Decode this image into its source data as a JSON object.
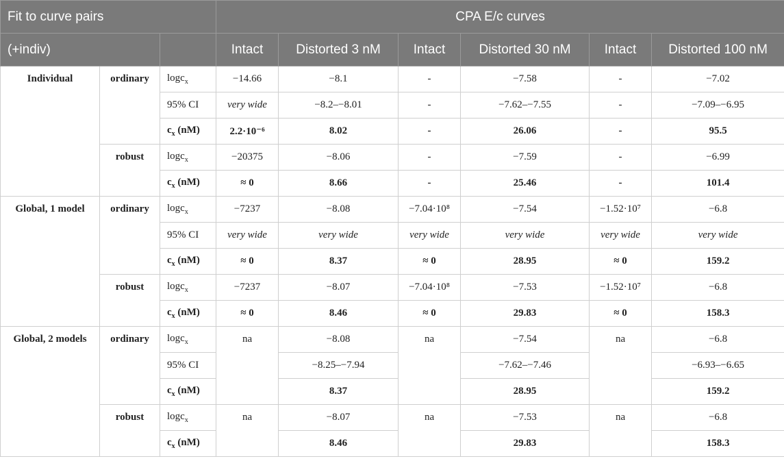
{
  "header": {
    "title_left": "Fit to curve pairs",
    "subtitle_left": "(+indiv)",
    "title_right": "CPA E/c curves",
    "columns": [
      "Intact",
      "Distorted 3 nM",
      "Intact",
      "Distorted 30 nM",
      "Intact",
      "Distorted 100 nM"
    ]
  },
  "labels": {
    "logc": "logc",
    "logc_sub": "x",
    "ci": "95% CI",
    "cx_pre": "c",
    "cx_sub": "x",
    "cx_post": " (nM)"
  },
  "groups": [
    {
      "name": "Individual",
      "methods": [
        {
          "name": "ordinary",
          "rows": [
            {
              "metric": "logc",
              "cells": [
                "−14.66",
                "−8.1",
                "-",
                "−7.58",
                "-",
                "−7.02"
              ]
            },
            {
              "metric": "ci",
              "cells": [
                "very wide",
                "−8.2–−8.01",
                "-",
                "−7.62–−7.55",
                "-",
                "−7.09–−6.95"
              ]
            },
            {
              "metric": "cx",
              "cells": [
                "2.2·10⁻⁶",
                "8.02",
                "-",
                "26.06",
                "-",
                "95.5"
              ]
            }
          ]
        },
        {
          "name": "robust",
          "rows": [
            {
              "metric": "logc",
              "cells": [
                "−20375",
                "−8.06",
                "-",
                "−7.59",
                "-",
                "−6.99"
              ]
            },
            {
              "metric": "cx",
              "cells": [
                "≈ 0",
                "8.66",
                "-",
                "25.46",
                "-",
                "101.4"
              ]
            }
          ]
        }
      ]
    },
    {
      "name": "Global, 1 model",
      "methods": [
        {
          "name": "ordinary",
          "rows": [
            {
              "metric": "logc",
              "cells": [
                "−7237",
                "−8.08",
                "−7.04·10⁸",
                "−7.54",
                "−1.52·10⁷",
                "−6.8"
              ]
            },
            {
              "metric": "ci",
              "cells": [
                "very wide",
                "very wide",
                "very wide",
                "very wide",
                "very wide",
                "very wide"
              ]
            },
            {
              "metric": "cx",
              "cells": [
                "≈ 0",
                "8.37",
                "≈ 0",
                "28.95",
                "≈ 0",
                "159.2"
              ]
            }
          ]
        },
        {
          "name": "robust",
          "rows": [
            {
              "metric": "logc",
              "cells": [
                "−7237",
                "−8.07",
                "−7.04·10⁸",
                "−7.53",
                "−1.52·10⁷",
                "−6.8"
              ]
            },
            {
              "metric": "cx",
              "cells": [
                "≈ 0",
                "8.46",
                "≈ 0",
                "29.83",
                "≈ 0",
                "158.3"
              ]
            }
          ]
        }
      ]
    },
    {
      "name": "Global, 2 models",
      "methods": [
        {
          "name": "ordinary",
          "intact_value": "na",
          "rows": [
            {
              "metric": "logc",
              "distorted": [
                "−8.08",
                "−7.54",
                "−6.8"
              ]
            },
            {
              "metric": "ci",
              "distorted": [
                "−8.25–−7.94",
                "−7.62–−7.46",
                "−6.93–−6.65"
              ]
            },
            {
              "metric": "cx",
              "distorted": [
                "8.37",
                "28.95",
                "159.2"
              ]
            }
          ]
        },
        {
          "name": "robust",
          "intact_value": "na",
          "rows": [
            {
              "metric": "logc",
              "distorted": [
                "−8.07",
                "−7.53",
                "−6.8"
              ]
            },
            {
              "metric": "cx",
              "distorted": [
                "8.46",
                "29.83",
                "158.3"
              ]
            }
          ]
        }
      ]
    }
  ]
}
